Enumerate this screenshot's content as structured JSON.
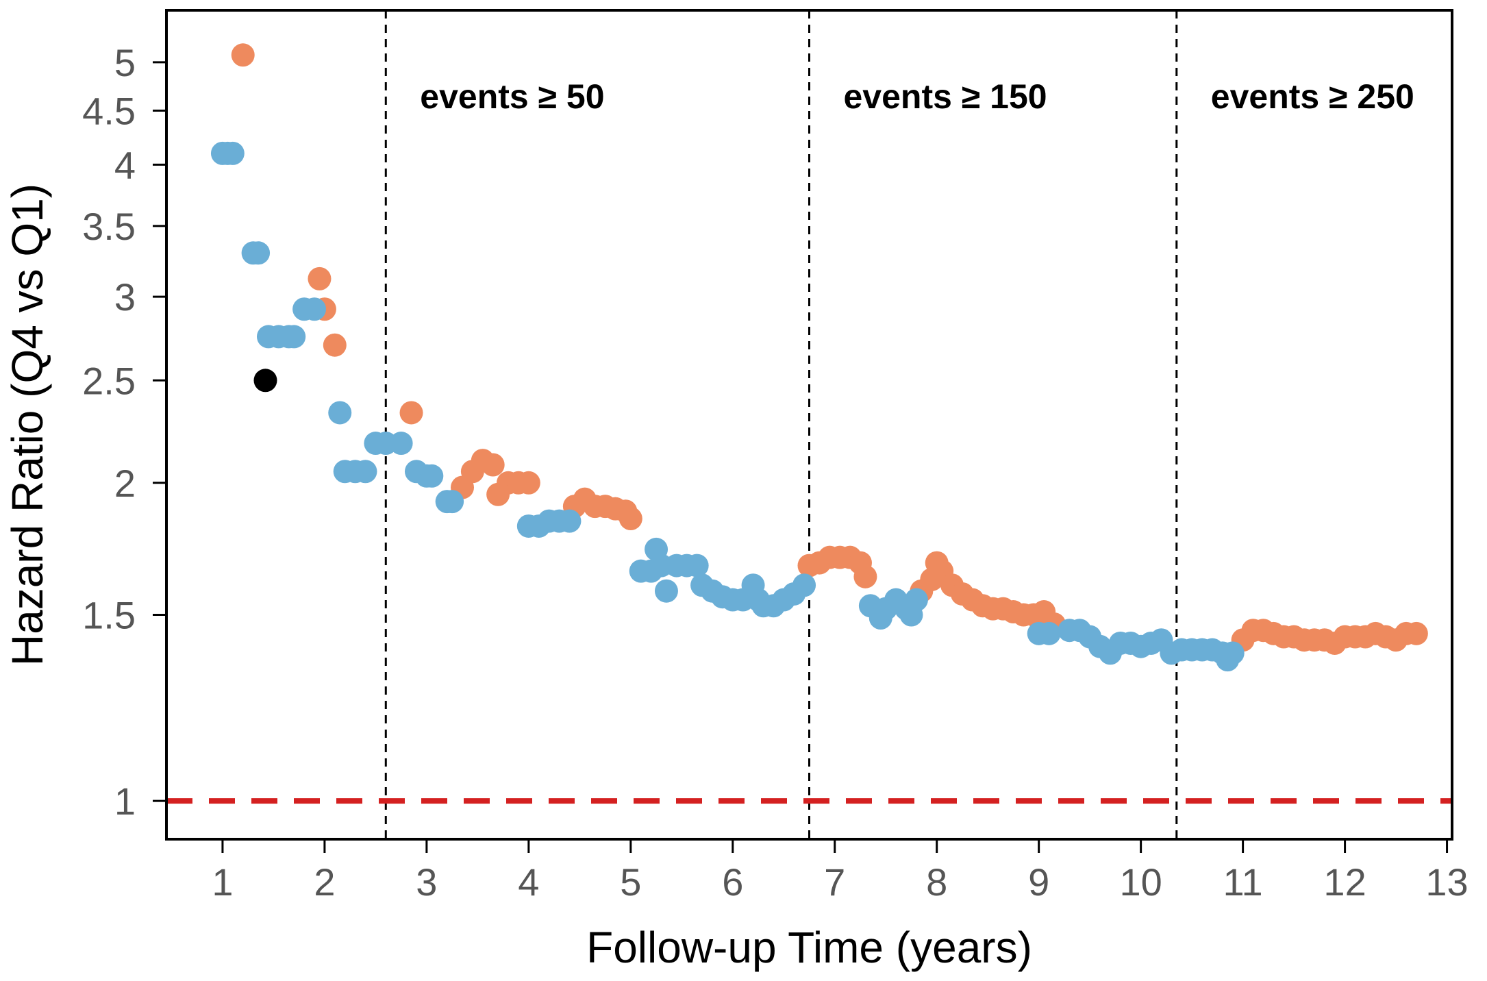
{
  "chart_data": {
    "type": "scatter",
    "title": "",
    "xlabel": "Follow-up Time (years)",
    "ylabel": "Hazard Ratio (Q4 vs Q1)",
    "y_scale": "log",
    "xlim": [
      0.45,
      13.05
    ],
    "ylim": [
      0.92,
      5.6
    ],
    "xticks": [
      1,
      2,
      3,
      4,
      5,
      6,
      7,
      8,
      9,
      10,
      11,
      12,
      13
    ],
    "yticks": [
      1,
      1.5,
      2,
      2.5,
      3,
      3.5,
      4,
      4.5,
      5
    ],
    "reference_line": {
      "y": 1,
      "color": "#d42020",
      "style": "dashed"
    },
    "thresholds": [
      {
        "x": 2.6,
        "label": "events ≥ 50"
      },
      {
        "x": 6.75,
        "label": "events ≥ 150"
      },
      {
        "x": 10.35,
        "label": "events ≥ 250"
      }
    ],
    "colors": {
      "significant_up": "#ee8a5e",
      "default": "#6aaed6",
      "first_significant": "#000000"
    },
    "series": [
      {
        "name": "orange",
        "color": "#ee8a5e",
        "points": [
          [
            1.2,
            5.08
          ],
          [
            1.95,
            3.12
          ],
          [
            2.0,
            2.92
          ],
          [
            2.1,
            2.7
          ],
          [
            2.85,
            2.33
          ],
          [
            3.35,
            1.98
          ],
          [
            3.45,
            2.05
          ],
          [
            3.55,
            2.1
          ],
          [
            3.65,
            2.08
          ],
          [
            3.7,
            1.95
          ],
          [
            3.8,
            2.0
          ],
          [
            3.9,
            2.0
          ],
          [
            4.0,
            2.0
          ],
          [
            4.45,
            1.9
          ],
          [
            4.55,
            1.93
          ],
          [
            4.65,
            1.9
          ],
          [
            4.75,
            1.9
          ],
          [
            4.85,
            1.89
          ],
          [
            4.95,
            1.88
          ],
          [
            5.0,
            1.85
          ],
          [
            6.75,
            1.67
          ],
          [
            6.85,
            1.68
          ],
          [
            6.95,
            1.7
          ],
          [
            7.05,
            1.7
          ],
          [
            7.15,
            1.7
          ],
          [
            7.25,
            1.68
          ],
          [
            7.3,
            1.63
          ],
          [
            7.85,
            1.58
          ],
          [
            7.95,
            1.62
          ],
          [
            8.0,
            1.68
          ],
          [
            8.05,
            1.65
          ],
          [
            8.15,
            1.6
          ],
          [
            8.25,
            1.57
          ],
          [
            8.35,
            1.55
          ],
          [
            8.45,
            1.53
          ],
          [
            8.55,
            1.52
          ],
          [
            8.65,
            1.52
          ],
          [
            8.75,
            1.51
          ],
          [
            8.85,
            1.5
          ],
          [
            8.95,
            1.5
          ],
          [
            9.05,
            1.51
          ],
          [
            9.15,
            1.47
          ],
          [
            11.0,
            1.42
          ],
          [
            11.1,
            1.45
          ],
          [
            11.2,
            1.45
          ],
          [
            11.3,
            1.44
          ],
          [
            11.4,
            1.43
          ],
          [
            11.5,
            1.43
          ],
          [
            11.6,
            1.42
          ],
          [
            11.7,
            1.42
          ],
          [
            11.8,
            1.42
          ],
          [
            11.9,
            1.41
          ],
          [
            12.0,
            1.43
          ],
          [
            12.1,
            1.43
          ],
          [
            12.2,
            1.43
          ],
          [
            12.3,
            1.44
          ],
          [
            12.4,
            1.43
          ],
          [
            12.5,
            1.42
          ],
          [
            12.6,
            1.44
          ],
          [
            12.7,
            1.44
          ]
        ]
      },
      {
        "name": "blue",
        "color": "#6aaed6",
        "points": [
          [
            1.0,
            4.1
          ],
          [
            1.05,
            4.1
          ],
          [
            1.1,
            4.1
          ],
          [
            1.3,
            3.3
          ],
          [
            1.35,
            3.3
          ],
          [
            1.45,
            2.75
          ],
          [
            1.55,
            2.75
          ],
          [
            1.65,
            2.75
          ],
          [
            1.7,
            2.75
          ],
          [
            1.8,
            2.92
          ],
          [
            1.9,
            2.92
          ],
          [
            2.15,
            2.33
          ],
          [
            2.2,
            2.05
          ],
          [
            2.3,
            2.05
          ],
          [
            2.4,
            2.05
          ],
          [
            2.5,
            2.18
          ],
          [
            2.6,
            2.18
          ],
          [
            2.75,
            2.18
          ],
          [
            2.9,
            2.05
          ],
          [
            3.0,
            2.03
          ],
          [
            3.05,
            2.03
          ],
          [
            3.2,
            1.92
          ],
          [
            3.25,
            1.92
          ],
          [
            4.0,
            1.82
          ],
          [
            4.1,
            1.82
          ],
          [
            4.2,
            1.84
          ],
          [
            4.3,
            1.84
          ],
          [
            4.4,
            1.84
          ],
          [
            5.1,
            1.65
          ],
          [
            5.2,
            1.65
          ],
          [
            5.25,
            1.73
          ],
          [
            5.3,
            1.67
          ],
          [
            5.35,
            1.58
          ],
          [
            5.45,
            1.67
          ],
          [
            5.55,
            1.67
          ],
          [
            5.65,
            1.67
          ],
          [
            5.7,
            1.6
          ],
          [
            5.8,
            1.58
          ],
          [
            5.9,
            1.56
          ],
          [
            6.0,
            1.55
          ],
          [
            6.1,
            1.55
          ],
          [
            6.2,
            1.6
          ],
          [
            6.25,
            1.55
          ],
          [
            6.3,
            1.53
          ],
          [
            6.4,
            1.53
          ],
          [
            6.5,
            1.55
          ],
          [
            6.6,
            1.57
          ],
          [
            6.7,
            1.6
          ],
          [
            7.35,
            1.53
          ],
          [
            7.45,
            1.49
          ],
          [
            7.5,
            1.52
          ],
          [
            7.6,
            1.55
          ],
          [
            7.7,
            1.52
          ],
          [
            7.75,
            1.5
          ],
          [
            7.8,
            1.55
          ],
          [
            9.0,
            1.44
          ],
          [
            9.1,
            1.44
          ],
          [
            9.3,
            1.45
          ],
          [
            9.4,
            1.45
          ],
          [
            9.5,
            1.43
          ],
          [
            9.6,
            1.4
          ],
          [
            9.7,
            1.38
          ],
          [
            9.8,
            1.41
          ],
          [
            9.9,
            1.41
          ],
          [
            10.0,
            1.4
          ],
          [
            10.1,
            1.41
          ],
          [
            10.2,
            1.42
          ],
          [
            10.3,
            1.38
          ],
          [
            10.4,
            1.39
          ],
          [
            10.5,
            1.39
          ],
          [
            10.6,
            1.39
          ],
          [
            10.7,
            1.39
          ],
          [
            10.8,
            1.38
          ],
          [
            10.85,
            1.36
          ],
          [
            10.9,
            1.38
          ]
        ]
      },
      {
        "name": "black",
        "color": "#000000",
        "points": [
          [
            1.42,
            2.5
          ]
        ]
      }
    ]
  }
}
